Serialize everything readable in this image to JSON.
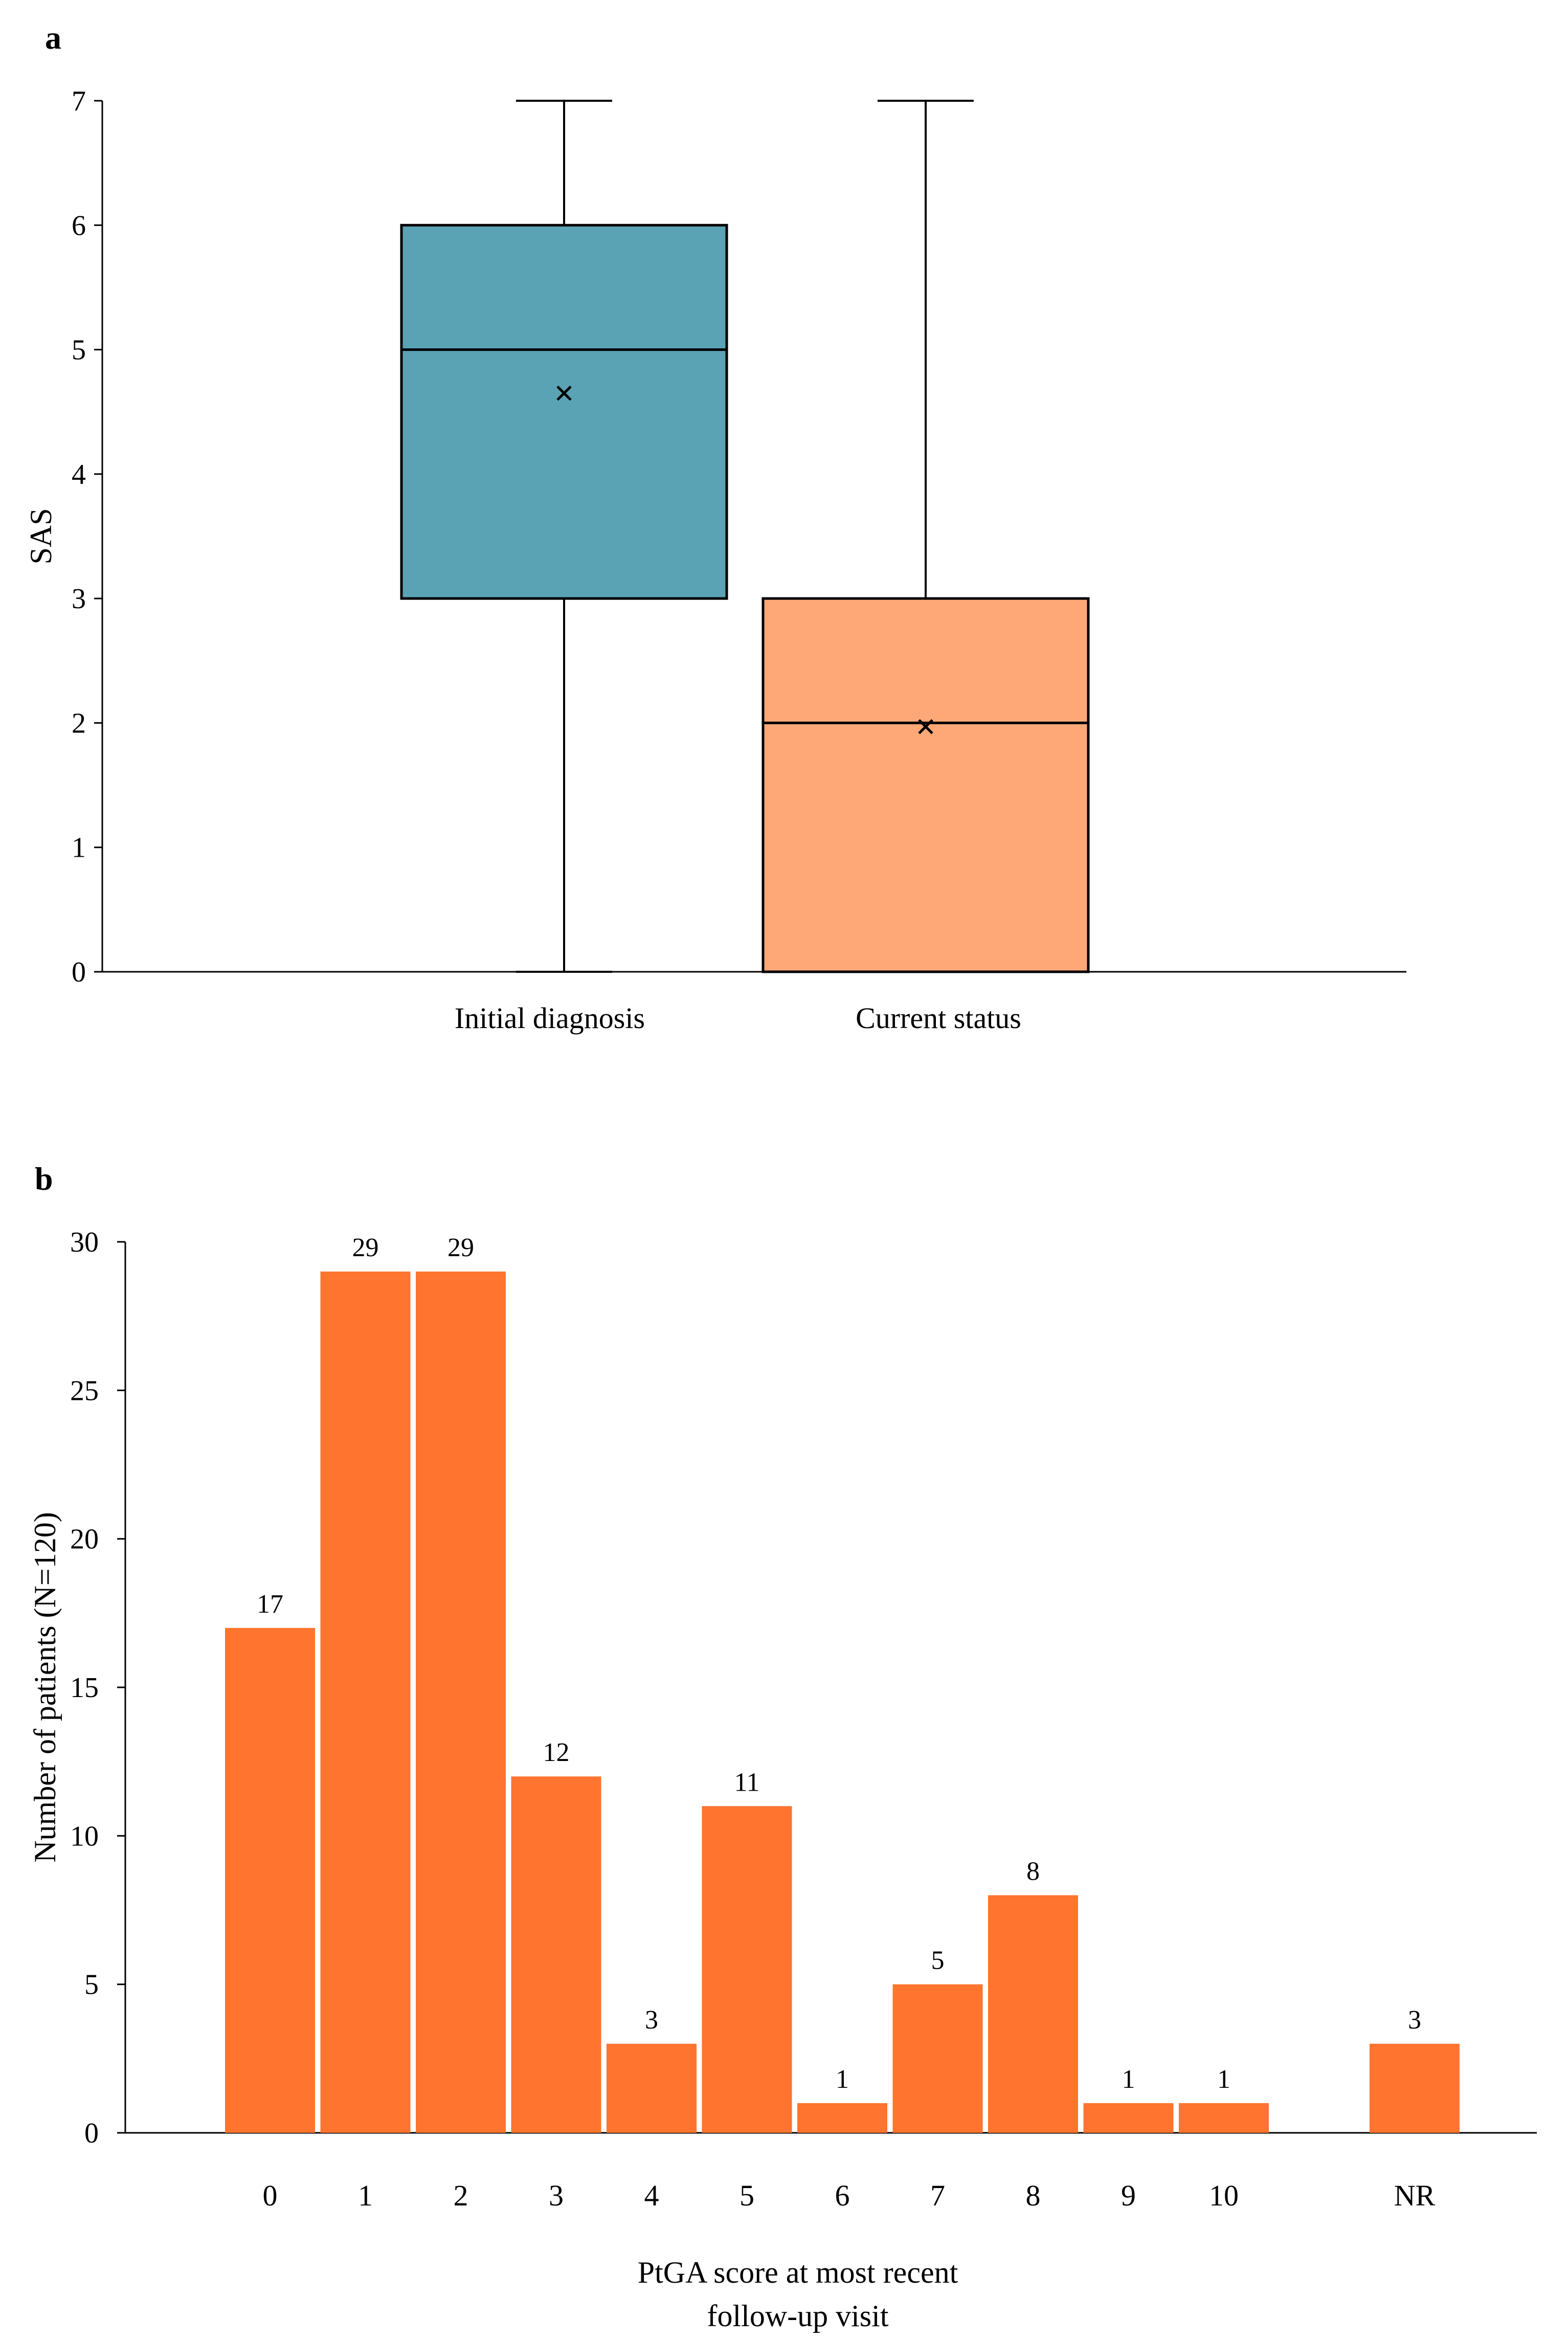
{
  "panels": {
    "a": {
      "label": "a"
    },
    "b": {
      "label": "b"
    }
  },
  "chart_data": [
    {
      "type": "box",
      "panel": "a",
      "title": "",
      "xlabel": "",
      "ylabel": "SAS",
      "ylim": [
        0,
        7
      ],
      "yticks": [
        0,
        1,
        2,
        3,
        4,
        5,
        6,
        7
      ],
      "grid": false,
      "legend": "none",
      "boxes": [
        {
          "category": "Initial diagnosis",
          "min": 0,
          "q1": 3,
          "median": 5,
          "q3": 6,
          "max": 7,
          "mean": 4.65,
          "color": "#5aa3b4"
        },
        {
          "category": "Current status",
          "min": 0,
          "q1": 0,
          "median": 2,
          "q3": 3,
          "max": 7,
          "mean": 1.97,
          "color": "#fea878"
        }
      ]
    },
    {
      "type": "bar",
      "panel": "b",
      "title": "",
      "xlabel": "PtGA score at most recent follow-up visit",
      "xlabel_lines": [
        "PtGA score at most recent",
        "follow-up visit"
      ],
      "ylabel": "Number of patients (N=120)",
      "ylim": [
        0,
        30
      ],
      "yticks": [
        0,
        5,
        10,
        15,
        20,
        25,
        30
      ],
      "grid": false,
      "legend": "none",
      "color": "#ff742e",
      "categories": [
        "0",
        "1",
        "2",
        "3",
        "4",
        "5",
        "6",
        "7",
        "8",
        "9",
        "10",
        "NR"
      ],
      "values": [
        17,
        29,
        29,
        12,
        3,
        11,
        1,
        5,
        8,
        1,
        1,
        3
      ],
      "data_labels": [
        "17",
        "29",
        "29",
        "12",
        "3",
        "11",
        "1",
        "5",
        "8",
        "1",
        "1",
        "3"
      ]
    }
  ]
}
